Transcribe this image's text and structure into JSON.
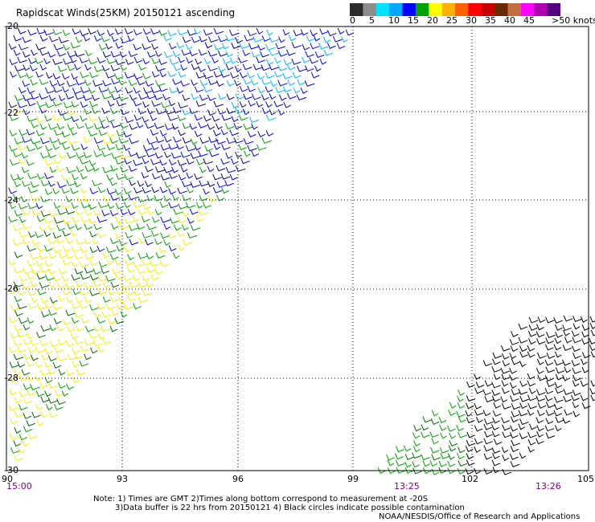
{
  "title": "Rapidscat Winds(25KM) 20150121 ascending",
  "colorbar": {
    "labels": [
      "0",
      "5",
      "10",
      "15",
      "20",
      "25",
      "30",
      "35",
      "40",
      "45",
      ">50 knots"
    ],
    "colors": [
      "#2a2a2a",
      "#8c8c8c",
      "#00e0ff",
      "#00a8ff",
      "#0000ff",
      "#00a000",
      "#ffff00",
      "#ffb000",
      "#ff6000",
      "#ff0000",
      "#c80000",
      "#6a2a00",
      "#c07040",
      "#ff00ff",
      "#b000b0",
      "#500080"
    ]
  },
  "map": {
    "lon_labels": [
      "90",
      "93",
      "96",
      "99",
      "102",
      "105"
    ],
    "lat_labels": [
      "-20",
      "-22",
      "-24",
      "-26",
      "-28",
      "-30"
    ],
    "time_labels": [
      "15:00",
      "13:25",
      "13:26"
    ]
  },
  "notes": {
    "line1": "Note: 1) Times are GMT  2)Times along bottom correspond to measurement at -20S",
    "line2": "3)Data buffer is 22 hrs from 20150121  4) Black circles indicate possible contamination",
    "line3": "NOAA/NESDIS/Office of Research and Applications"
  },
  "wind_colors": {
    "light_blue": "#00b8ff",
    "blue": "#0000dd",
    "navy": "#000080",
    "green": "#00a000",
    "dark_green": "#006400",
    "yellow": "#f0f000",
    "black": "#000000"
  }
}
